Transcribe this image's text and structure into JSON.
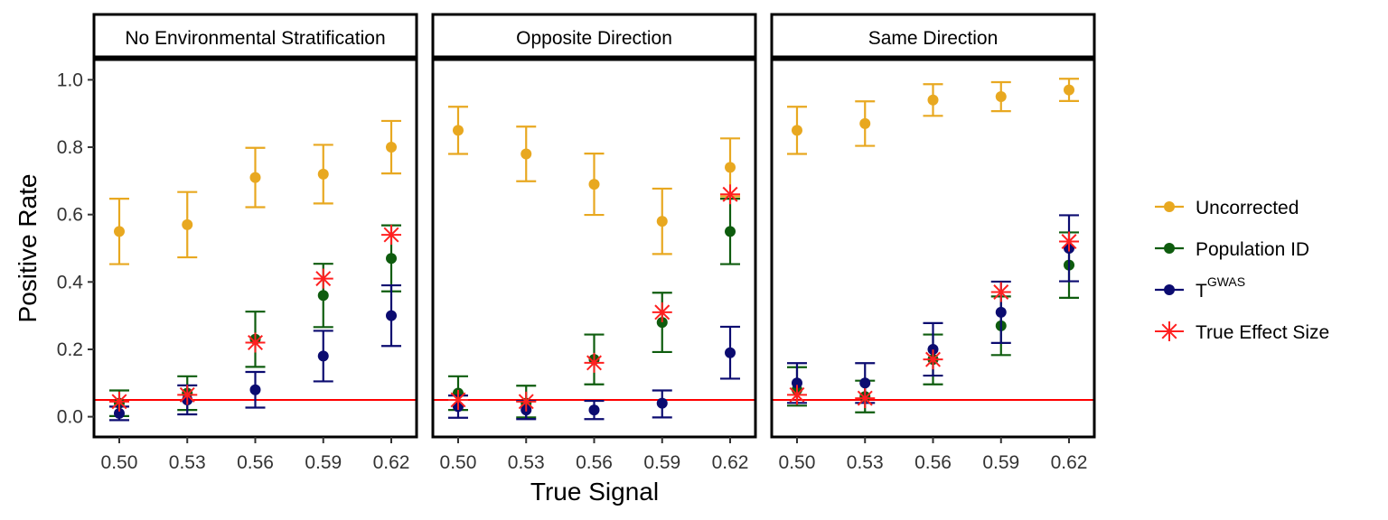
{
  "chart_data": {
    "type": "scatter",
    "xlabel": "True Signal",
    "ylabel": "Positive Rate",
    "x_ticks": [
      "0.50",
      "0.53",
      "0.56",
      "0.59",
      "0.62"
    ],
    "y_ticks": [
      "0.0",
      "0.2",
      "0.4",
      "0.6",
      "0.8",
      "1.0"
    ],
    "ylim": [
      -0.06,
      1.06
    ],
    "reference_line": {
      "y": 0.05,
      "color": "#ff0000"
    },
    "legend_position": "right",
    "series_styles": [
      {
        "key": "uncorrected",
        "label": "Uncorrected",
        "color": "#e8a820",
        "marker": "point-errorbar"
      },
      {
        "key": "popid",
        "label": "Population ID",
        "color": "#0e5c0e",
        "marker": "point-errorbar"
      },
      {
        "key": "tgwas",
        "label": "T",
        "label_superscript": "GWAS",
        "color": "#0b0b70",
        "marker": "point-errorbar"
      },
      {
        "key": "true_effect",
        "label": "True Effect Size",
        "color": "#ff2020",
        "marker": "asterisk"
      }
    ],
    "panels": [
      {
        "title": "No Environmental Stratification",
        "series": {
          "uncorrected": {
            "values": [
              0.55,
              0.57,
              0.71,
              0.72,
              0.8
            ],
            "lower": [
              0.453,
              0.473,
              0.622,
              0.633,
              0.722
            ],
            "upper": [
              0.647,
              0.667,
              0.798,
              0.807,
              0.878
            ]
          },
          "popid": {
            "values": [
              0.04,
              0.07,
              0.23,
              0.36,
              0.47
            ],
            "lower": [
              0.002,
              0.02,
              0.148,
              0.266,
              0.372
            ],
            "upper": [
              0.078,
              0.12,
              0.312,
              0.454,
              0.568
            ]
          },
          "tgwas": {
            "values": [
              0.01,
              0.05,
              0.08,
              0.18,
              0.3
            ],
            "lower": [
              -0.01,
              0.007,
              0.027,
              0.105,
              0.21
            ],
            "upper": [
              0.03,
              0.093,
              0.133,
              0.255,
              0.39
            ]
          },
          "true_effect": {
            "values": [
              0.045,
              0.065,
              0.22,
              0.41,
              0.54
            ]
          }
        }
      },
      {
        "title": "Opposite Direction",
        "series": {
          "uncorrected": {
            "values": [
              0.85,
              0.78,
              0.69,
              0.58,
              0.74
            ],
            "lower": [
              0.78,
              0.699,
              0.599,
              0.483,
              0.654
            ],
            "upper": [
              0.92,
              0.861,
              0.781,
              0.677,
              0.826
            ]
          },
          "popid": {
            "values": [
              0.07,
              0.04,
              0.17,
              0.28,
              0.55
            ],
            "lower": [
              0.02,
              -0.002,
              0.096,
              0.192,
              0.453
            ],
            "upper": [
              0.12,
              0.092,
              0.244,
              0.368,
              0.647
            ]
          },
          "tgwas": {
            "values": [
              0.03,
              0.02,
              0.02,
              0.04,
              0.19
            ],
            "lower": [
              -0.003,
              -0.007,
              -0.007,
              -0.002,
              0.113
            ],
            "upper": [
              0.063,
              0.047,
              0.047,
              0.078,
              0.267
            ]
          },
          "true_effect": {
            "values": [
              0.05,
              0.045,
              0.16,
              0.31,
              0.66
            ]
          }
        }
      },
      {
        "title": "Same Direction",
        "series": {
          "uncorrected": {
            "values": [
              0.85,
              0.87,
              0.94,
              0.95,
              0.97
            ],
            "lower": [
              0.78,
              0.804,
              0.893,
              0.907,
              0.937
            ],
            "upper": [
              0.92,
              0.936,
              0.987,
              0.993,
              1.003
            ]
          },
          "popid": {
            "values": [
              0.08,
              0.06,
              0.17,
              0.27,
              0.45
            ],
            "lower": [
              0.033,
              0.013,
              0.096,
              0.183,
              0.353
            ],
            "upper": [
              0.147,
              0.107,
              0.244,
              0.357,
              0.547
            ]
          },
          "tgwas": {
            "values": [
              0.1,
              0.1,
              0.2,
              0.31,
              0.5
            ],
            "lower": [
              0.041,
              0.041,
              0.122,
              0.219,
              0.402
            ],
            "upper": [
              0.159,
              0.159,
              0.278,
              0.401,
              0.598
            ]
          },
          "true_effect": {
            "values": [
              0.065,
              0.055,
              0.17,
              0.37,
              0.52
            ]
          }
        }
      }
    ]
  }
}
